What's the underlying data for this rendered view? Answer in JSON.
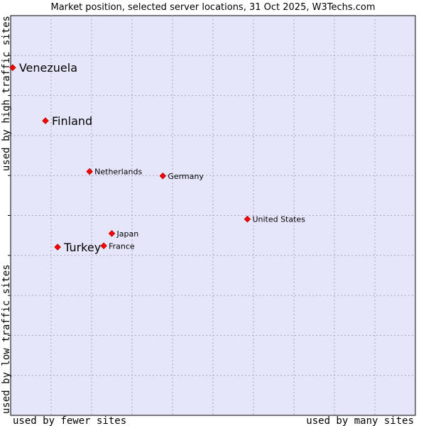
{
  "chart_data": {
    "type": "scatter",
    "title": "Market position, selected server locations, 31 Oct 2025, W3Techs.com",
    "xlabel_left": "used by fewer sites",
    "xlabel_right": "used by many sites",
    "ylabel_top": "used by high traffic sites",
    "ylabel_bottom": "used by low traffic sites",
    "xlim": [
      0,
      10
    ],
    "ylim": [
      0,
      10
    ],
    "grid": true,
    "colors": {
      "plot_bg": "#e6e6fa",
      "grid": "#a6a6b8",
      "point": "#ff0000",
      "point_edge": "#b40000"
    },
    "points": [
      {
        "name": "Venezuela",
        "x": 0.05,
        "y": 8.7,
        "emphasis": true
      },
      {
        "name": "Finland",
        "x": 0.86,
        "y": 7.37,
        "emphasis": true
      },
      {
        "name": "Netherlands",
        "x": 1.95,
        "y": 6.1,
        "emphasis": false
      },
      {
        "name": "Germany",
        "x": 3.76,
        "y": 5.99,
        "emphasis": false
      },
      {
        "name": "United States",
        "x": 5.85,
        "y": 4.91,
        "emphasis": false
      },
      {
        "name": "Japan",
        "x": 2.5,
        "y": 4.55,
        "emphasis": false
      },
      {
        "name": "France",
        "x": 2.3,
        "y": 4.24,
        "emphasis": false
      },
      {
        "name": "Turkey",
        "x": 1.16,
        "y": 4.21,
        "emphasis": true
      }
    ]
  }
}
